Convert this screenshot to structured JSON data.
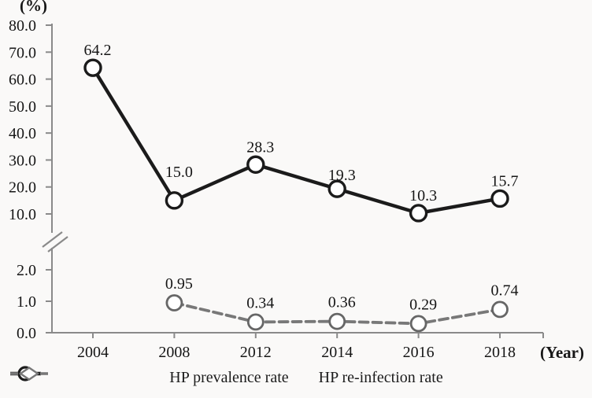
{
  "chart_data": {
    "type": "line",
    "title": "",
    "y_axis_label": "(%)",
    "x_axis_label": "(Year)",
    "categories": [
      "2004",
      "2008",
      "2012",
      "2014",
      "2016",
      "2018"
    ],
    "axis_break": true,
    "upper_axis": {
      "range": [
        10,
        80
      ],
      "tick_labels": [
        "80.0",
        "70.0",
        "60.0",
        "50.0",
        "40.0",
        "30.0",
        "20.0",
        "10.0"
      ],
      "tick_values": [
        80,
        70,
        60,
        50,
        40,
        30,
        20,
        10
      ]
    },
    "lower_axis": {
      "range": [
        0,
        2
      ],
      "tick_labels": [
        "2.0",
        "1.0",
        "0.0"
      ],
      "tick_values": [
        2,
        1,
        0
      ]
    },
    "colors": {
      "prevalence_line": "#1b1b1b",
      "reinfection_line": "#787878",
      "reinfection_marker_stroke": "#666666",
      "axis": "#8a8a8a",
      "text": "#161616",
      "marker_fill": "#ffffff"
    },
    "series": [
      {
        "name": "HP prevalence rate",
        "line": "solid",
        "marker": "circle",
        "section": "upper",
        "points": [
          {
            "x": "2004",
            "y": 64.2,
            "label": "64.2"
          },
          {
            "x": "2008",
            "y": 15.0,
            "label": "15.0"
          },
          {
            "x": "2012",
            "y": 28.3,
            "label": "28.3"
          },
          {
            "x": "2014",
            "y": 19.3,
            "label": "19.3"
          },
          {
            "x": "2016",
            "y": 10.3,
            "label": "10.3"
          },
          {
            "x": "2018",
            "y": 15.7,
            "label": "15.7"
          }
        ]
      },
      {
        "name": "HP re-infection rate",
        "line": "dashed",
        "marker": "circle",
        "section": "lower",
        "points": [
          {
            "x": "2008",
            "y": 0.95,
            "label": "0.95"
          },
          {
            "x": "2012",
            "y": 0.34,
            "label": "0.34"
          },
          {
            "x": "2014",
            "y": 0.36,
            "label": "0.36"
          },
          {
            "x": "2016",
            "y": 0.29,
            "label": "0.29"
          },
          {
            "x": "2018",
            "y": 0.74,
            "label": "0.74"
          }
        ]
      }
    ],
    "legend": {
      "position": "bottom"
    }
  }
}
